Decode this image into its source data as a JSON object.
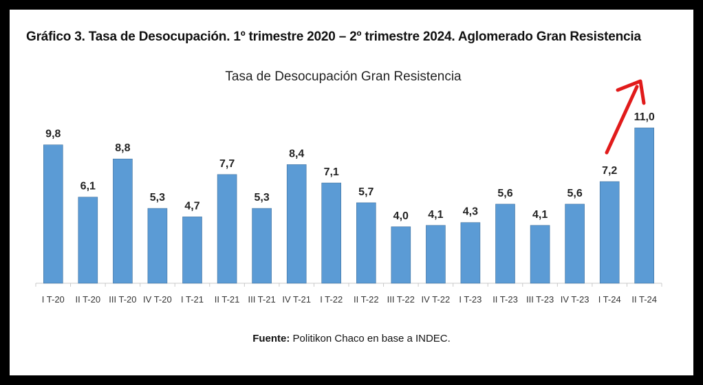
{
  "heading": "Gráfico 3. Tasa de Desocupación. 1º trimestre 2020 – 2º trimestre 2024. Aglomerado Gran Resistencia",
  "source": {
    "label": "Fuente:",
    "text": " Politikon Chaco en base a INDEC."
  },
  "chart_data": {
    "type": "bar",
    "title": "Tasa de Desocupación Gran Resistencia",
    "categories": [
      "I T-20",
      "II T-20",
      "III T-20",
      "IV T-20",
      "I T-21",
      "II T-21",
      "III T-21",
      "IV T-21",
      "I T-22",
      "II T-22",
      "III T-22",
      "IV T-22",
      "I T-23",
      "II T-23",
      "III T-23",
      "IV T-23",
      "I T-24",
      "II T-24"
    ],
    "values": [
      9.8,
      6.1,
      8.8,
      5.3,
      4.7,
      7.7,
      5.3,
      8.4,
      7.1,
      5.7,
      4.0,
      4.1,
      4.3,
      5.6,
      4.1,
      5.6,
      7.2,
      11.0
    ],
    "data_labels": [
      "9,8",
      "6,1",
      "8,8",
      "5,3",
      "4,7",
      "7,7",
      "5,3",
      "8,4",
      "7,1",
      "5,7",
      "4,0",
      "4,1",
      "4,3",
      "5,6",
      "4,1",
      "5,6",
      "7,2",
      "11,0"
    ],
    "ylim": [
      0,
      11.0
    ],
    "grid": false,
    "bar_color": "#5b9bd5",
    "annotation_arrow_color": "#e11b1b"
  }
}
